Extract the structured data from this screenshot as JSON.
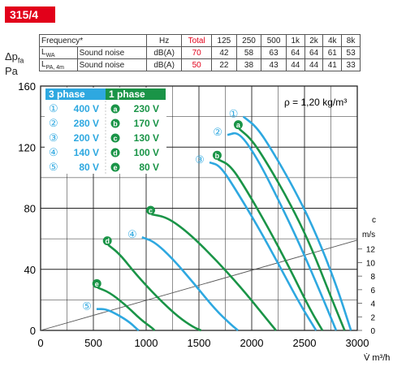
{
  "badge": "315/4",
  "noise_table": {
    "header": [
      "Frequency*",
      "Hz",
      "Total",
      "125",
      "250",
      "500",
      "1k",
      "2k",
      "4k",
      "8k"
    ],
    "rows": [
      {
        "label": "L",
        "sub": "WA",
        "desc": "Sound noise",
        "unit": "dB(A)",
        "total": "70",
        "values": [
          "42",
          "58",
          "63",
          "64",
          "64",
          "61",
          "53"
        ]
      },
      {
        "label": "L",
        "sub": "PA, 4m",
        "desc": "Sound noise",
        "unit": "dB(A)",
        "total": "50",
        "values": [
          "22",
          "38",
          "43",
          "44",
          "44",
          "41",
          "33"
        ]
      }
    ]
  },
  "ylabel": {
    "line1": "Δp",
    "line1_sub": "fa",
    "line2": "Pa"
  },
  "colors": {
    "three_phase": "#2ea8e0",
    "one_phase": "#1a9447",
    "grid": "#222222",
    "red": "#e2001a"
  },
  "chart_data": {
    "type": "line",
    "xlabel": "V̇ m³/h",
    "xlim": [
      0,
      3000
    ],
    "ylim": [
      0,
      160
    ],
    "xticks": [
      0,
      500,
      1000,
      1500,
      2000,
      2500,
      3000
    ],
    "yticks": [
      0,
      40,
      80,
      120,
      160
    ],
    "grid": true,
    "annotation": "ρ = 1,20 kg/m³",
    "legend": {
      "three_phase_title": "3 phase",
      "one_phase_title": "1 phase",
      "three_phase": [
        {
          "marker": "①",
          "label": "400 V"
        },
        {
          "marker": "②",
          "label": "280 V"
        },
        {
          "marker": "③",
          "label": "200 V"
        },
        {
          "marker": "④",
          "label": "140 V"
        },
        {
          "marker": "⑤",
          "label": "80 V"
        }
      ],
      "one_phase": [
        {
          "marker": "a",
          "label": "230 V"
        },
        {
          "marker": "b",
          "label": "170 V"
        },
        {
          "marker": "c",
          "label": "130 V"
        },
        {
          "marker": "d",
          "label": "100 V"
        },
        {
          "marker": "e",
          "label": "80 V"
        }
      ]
    },
    "series": [
      {
        "name": "①",
        "phase": "3",
        "x": [
          1920,
          2050,
          2200,
          2400,
          2600,
          2800,
          2940
        ],
        "y": [
          140,
          133,
          117,
          93,
          65,
          30,
          0
        ]
      },
      {
        "name": "a",
        "phase": "1",
        "x": [
          1880,
          2000,
          2150,
          2350,
          2550,
          2750,
          2880
        ],
        "y": [
          132,
          125,
          109,
          85,
          57,
          22,
          0
        ]
      },
      {
        "name": "②",
        "phase": "3",
        "x": [
          1770,
          1880,
          2050,
          2250,
          2450,
          2650,
          2800
        ],
        "y": [
          128,
          130,
          113,
          86,
          57,
          25,
          0
        ]
      },
      {
        "name": "b",
        "phase": "1",
        "x": [
          1680,
          1800,
          1950,
          2150,
          2350,
          2550,
          2670
        ],
        "y": [
          112,
          108,
          92,
          68,
          42,
          14,
          0
        ]
      },
      {
        "name": "③",
        "phase": "3",
        "x": [
          1600,
          1700,
          1850,
          2050,
          2250,
          2450,
          2610
        ],
        "y": [
          110,
          108,
          92,
          69,
          44,
          18,
          0
        ]
      },
      {
        "name": "c",
        "phase": "1",
        "x": [
          1050,
          1200,
          1400,
          1650,
          1900,
          2100,
          2230
        ],
        "y": [
          76,
          74,
          64,
          47,
          28,
          11,
          0
        ]
      },
      {
        "name": "④",
        "phase": "3",
        "x": [
          960,
          1080,
          1250,
          1450,
          1650,
          1800,
          1870
        ],
        "y": [
          61,
          58,
          47,
          31,
          14,
          4,
          0
        ]
      },
      {
        "name": "d",
        "phase": "1",
        "x": [
          640,
          750,
          900,
          1100,
          1300,
          1450,
          1520
        ],
        "y": [
          56,
          50,
          37,
          22,
          9,
          2,
          0
        ]
      },
      {
        "name": "e",
        "phase": "1",
        "x": [
          540,
          650,
          800,
          950,
          1050,
          1080
        ],
        "y": [
          28,
          25,
          17,
          7,
          2,
          0
        ]
      },
      {
        "name": "⑤",
        "phase": "3",
        "x": [
          530,
          620,
          740,
          850,
          910,
          930
        ],
        "y": [
          14,
          14,
          10,
          5,
          1,
          0
        ]
      }
    ],
    "secondary_axis": {
      "label_top": "c",
      "label_unit": "m/s",
      "ticks": [
        0,
        2,
        4,
        6,
        8,
        10,
        12
      ],
      "reference_line": {
        "x": [
          0,
          3000
        ],
        "y": [
          0,
          13.3
        ]
      }
    }
  }
}
